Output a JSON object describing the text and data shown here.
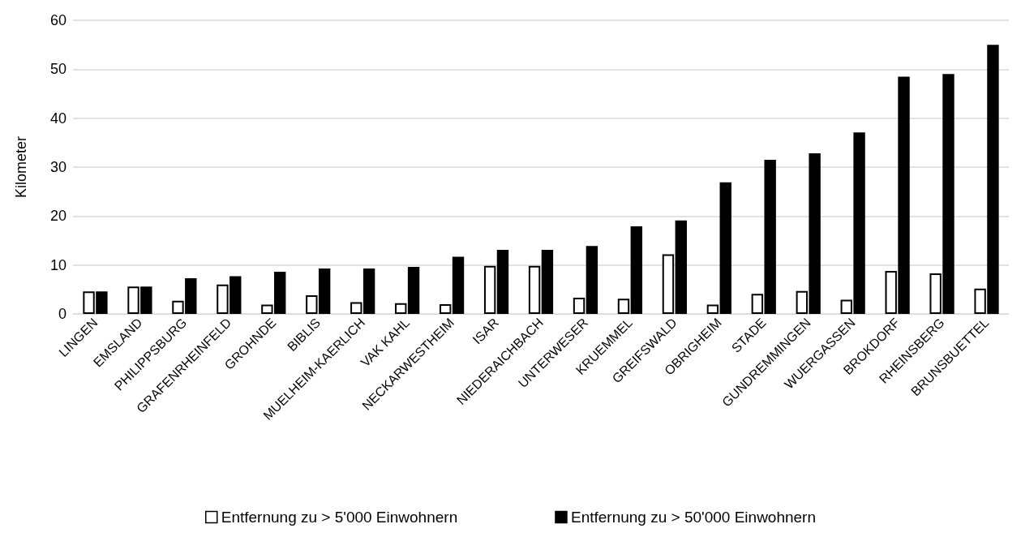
{
  "chart_data": {
    "type": "bar",
    "ylabel": "Kilometer",
    "categories": [
      "LINGEN",
      "EMSLAND",
      "PHILIPPSBURG",
      "GRAFENRHEINFELD",
      "GROHNDE",
      "BIBLIS",
      "MUELHEIM-KAERLICH",
      "VAK KAHL",
      "NECKARWESTHEIM",
      "ISAR",
      "NIEDERAICHBACH",
      "UNTERWESER",
      "KRUEMMEL",
      "GREIFSWALD",
      "OBRIGHEIM",
      "STADE",
      "GUNDREMMINGEN",
      "WUERGASSEN",
      "BROKDORF",
      "RHEINSBERG",
      "BRUNSBUETTEL"
    ],
    "series": [
      {
        "name": "Entfernung zu > 5'000 Einwohnern",
        "color": "#ffffff",
        "values": [
          4.6,
          5.6,
          2.7,
          6.0,
          1.9,
          3.8,
          2.4,
          2.2,
          2.0,
          9.8,
          9.8,
          3.3,
          3.1,
          12.2,
          1.9,
          4.1,
          4.7,
          2.9,
          8.8,
          8.3,
          5.2
        ]
      },
      {
        "name": "Entfernung zu > 50'000 Einwohnern",
        "color": "#000000",
        "values": [
          4.6,
          5.6,
          7.3,
          7.7,
          8.6,
          9.3,
          9.3,
          9.6,
          11.7,
          13.1,
          13.1,
          13.9,
          17.9,
          19.1,
          26.9,
          31.5,
          32.8,
          37.1,
          48.5,
          49.0,
          55.0
        ]
      }
    ],
    "ylim": [
      0,
      60
    ],
    "yticks": [
      0,
      10,
      20,
      30,
      40,
      50,
      60
    ],
    "grid": "y",
    "legend": "bottom"
  }
}
